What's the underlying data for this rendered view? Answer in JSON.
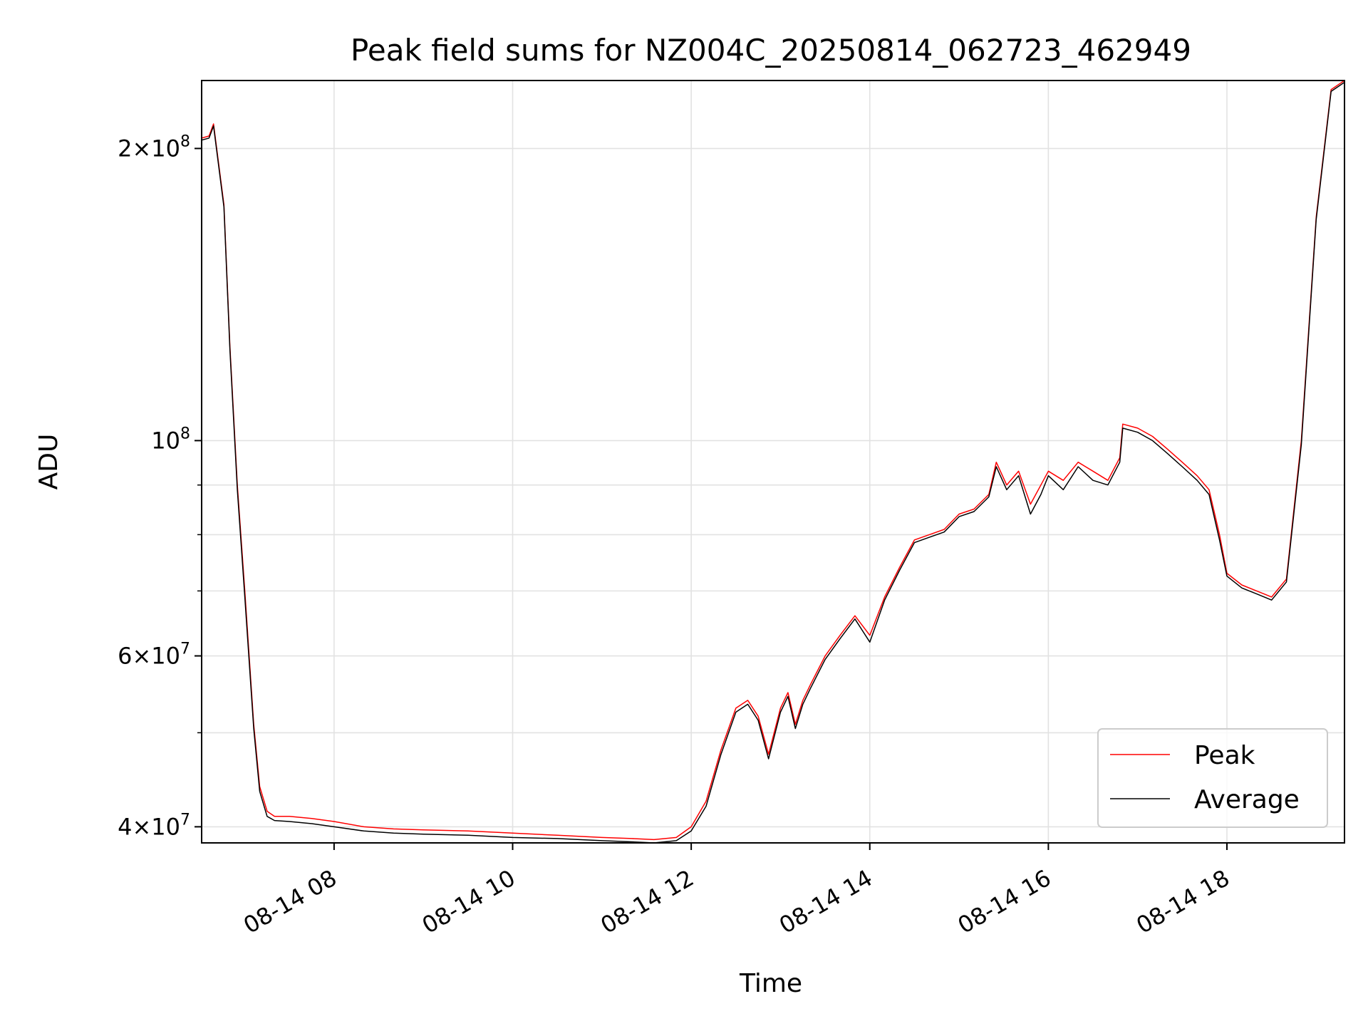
{
  "chart_data": {
    "type": "line",
    "title": "Peak field sums for NZ004C_20250814_062723_462949",
    "xlabel": "Time",
    "ylabel": "ADU",
    "x_scale": "time",
    "y_scale": "log",
    "xlim": [
      "2025-08-14T06:31",
      "2025-08-14T19:19"
    ],
    "ylim": [
      38500000,
      235000000
    ],
    "grid": true,
    "legend_position": "lower-right",
    "x_ticks": [
      {
        "value": "2025-08-14T08:00",
        "label": "08-14 08"
      },
      {
        "value": "2025-08-14T10:00",
        "label": "08-14 10"
      },
      {
        "value": "2025-08-14T12:00",
        "label": "08-14 12"
      },
      {
        "value": "2025-08-14T14:00",
        "label": "08-14 14"
      },
      {
        "value": "2025-08-14T16:00",
        "label": "08-14 16"
      },
      {
        "value": "2025-08-14T18:00",
        "label": "08-14 18"
      }
    ],
    "y_major_ticks": [
      {
        "value": 40000000,
        "mantissa": "4",
        "exponent": "7"
      },
      {
        "value": 60000000,
        "mantissa": "6",
        "exponent": "7"
      },
      {
        "value": 100000000,
        "mantissa": "",
        "exponent": "8"
      },
      {
        "value": 200000000,
        "mantissa": "2",
        "exponent": "8"
      }
    ],
    "y_tick_base": "10",
    "y_tick_times": "×",
    "y_minor_ticks": [
      50000000,
      70000000,
      80000000,
      90000000
    ],
    "series": [
      {
        "name": "Peak",
        "color": "#ff0000",
        "x": [
          "06:31",
          "06:36",
          "06:39",
          "06:46",
          "06:50",
          "06:55",
          "07:00",
          "07:06",
          "07:10",
          "07:15",
          "07:20",
          "07:30",
          "07:45",
          "08:00",
          "08:20",
          "08:40",
          "09:00",
          "09:30",
          "10:00",
          "10:30",
          "11:00",
          "11:20",
          "11:35",
          "11:50",
          "12:00",
          "12:10",
          "12:20",
          "12:30",
          "12:38",
          "12:45",
          "12:52",
          "13:00",
          "13:05",
          "13:10",
          "13:15",
          "13:20",
          "13:30",
          "13:40",
          "13:50",
          "14:00",
          "14:10",
          "14:20",
          "14:30",
          "14:40",
          "14:50",
          "15:00",
          "15:10",
          "15:20",
          "15:25",
          "15:32",
          "15:40",
          "15:48",
          "15:55",
          "16:00",
          "16:10",
          "16:20",
          "16:30",
          "16:40",
          "16:48",
          "16:50",
          "17:00",
          "17:10",
          "17:20",
          "17:30",
          "17:40",
          "17:48",
          "17:55",
          "18:00",
          "18:10",
          "18:20",
          "18:30",
          "18:40",
          "18:50",
          "19:00",
          "19:10",
          "19:19"
        ],
        "y": [
          205000000,
          206000000,
          212000000,
          175000000,
          125000000,
          90000000,
          70000000,
          51000000,
          44000000,
          41500000,
          41000000,
          41000000,
          40800000,
          40500000,
          40000000,
          39800000,
          39700000,
          39600000,
          39400000,
          39200000,
          39000000,
          38900000,
          38800000,
          39000000,
          40000000,
          42500000,
          48000000,
          53000000,
          54000000,
          52000000,
          47500000,
          53000000,
          55000000,
          51000000,
          54000000,
          56000000,
          60000000,
          63000000,
          66000000,
          63000000,
          69000000,
          74000000,
          79000000,
          80000000,
          81000000,
          84000000,
          85000000,
          88000000,
          95000000,
          90000000,
          93000000,
          86000000,
          90000000,
          93000000,
          91000000,
          95000000,
          93000000,
          91000000,
          96000000,
          104000000,
          103000000,
          101000000,
          98000000,
          95000000,
          92000000,
          89000000,
          80000000,
          73000000,
          71000000,
          70000000,
          69000000,
          72000000,
          100000000,
          170000000,
          230000000,
          235000000
        ]
      },
      {
        "name": "Average",
        "color": "#000000",
        "x": [
          "06:31",
          "06:36",
          "06:39",
          "06:46",
          "06:50",
          "06:55",
          "07:00",
          "07:06",
          "07:10",
          "07:15",
          "07:20",
          "07:30",
          "07:45",
          "08:00",
          "08:20",
          "08:40",
          "09:00",
          "09:30",
          "10:00",
          "10:30",
          "11:00",
          "11:20",
          "11:35",
          "11:50",
          "12:00",
          "12:10",
          "12:20",
          "12:30",
          "12:38",
          "12:45",
          "12:52",
          "13:00",
          "13:05",
          "13:10",
          "13:15",
          "13:20",
          "13:30",
          "13:40",
          "13:50",
          "14:00",
          "14:10",
          "14:20",
          "14:30",
          "14:40",
          "14:50",
          "15:00",
          "15:10",
          "15:20",
          "15:25",
          "15:32",
          "15:40",
          "15:48",
          "15:55",
          "16:00",
          "16:10",
          "16:20",
          "16:30",
          "16:40",
          "16:48",
          "16:50",
          "17:00",
          "17:10",
          "17:20",
          "17:30",
          "17:40",
          "17:48",
          "17:55",
          "18:00",
          "18:10",
          "18:20",
          "18:30",
          "18:40",
          "18:50",
          "19:00",
          "19:10",
          "19:19"
        ],
        "y": [
          204000000,
          205000000,
          211000000,
          174000000,
          124000000,
          89000000,
          69000000,
          50500000,
          43500000,
          41000000,
          40600000,
          40500000,
          40300000,
          40000000,
          39600000,
          39400000,
          39300000,
          39200000,
          39000000,
          38900000,
          38700000,
          38600000,
          38500000,
          38700000,
          39600000,
          42000000,
          47500000,
          52500000,
          53500000,
          51500000,
          47000000,
          52500000,
          54500000,
          50500000,
          53500000,
          55500000,
          59500000,
          62500000,
          65500000,
          62000000,
          68500000,
          73500000,
          78500000,
          79500000,
          80500000,
          83500000,
          84500000,
          87500000,
          94000000,
          89000000,
          92000000,
          84000000,
          88000000,
          92000000,
          89000000,
          94000000,
          91000000,
          90000000,
          95000000,
          103000000,
          102000000,
          100000000,
          97000000,
          94000000,
          91000000,
          88000000,
          79000000,
          72500000,
          70500000,
          69500000,
          68500000,
          71500000,
          99000000,
          169000000,
          229000000,
          234000000
        ]
      }
    ]
  }
}
